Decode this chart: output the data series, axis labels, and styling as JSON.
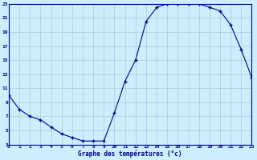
{
  "hours": [
    0,
    1,
    2,
    3,
    4,
    5,
    6,
    7,
    8,
    9,
    10,
    11,
    12,
    13,
    14,
    15,
    16,
    17,
    18,
    19,
    20,
    21,
    22,
    23
  ],
  "temps": [
    10,
    8,
    7,
    6.5,
    5.5,
    4.5,
    4,
    3.5,
    3.5,
    3.5,
    7.5,
    12,
    15,
    20.5,
    22.5,
    23,
    23,
    23,
    23,
    22.5,
    22,
    20,
    16.5,
    12.5
  ],
  "line_color": "#00008B",
  "bg_color": "#cceeff",
  "grid_color": "#aacccc",
  "xlabel": "Graphe des températures (°c)",
  "ylim": [
    3,
    23
  ],
  "xlim": [
    0,
    23
  ],
  "yticks": [
    3,
    5,
    7,
    9,
    11,
    13,
    15,
    17,
    19,
    21,
    23
  ],
  "xticks": [
    0,
    1,
    2,
    3,
    4,
    5,
    6,
    7,
    8,
    9,
    10,
    11,
    12,
    13,
    14,
    15,
    16,
    17,
    18,
    19,
    20,
    21,
    22,
    23
  ]
}
